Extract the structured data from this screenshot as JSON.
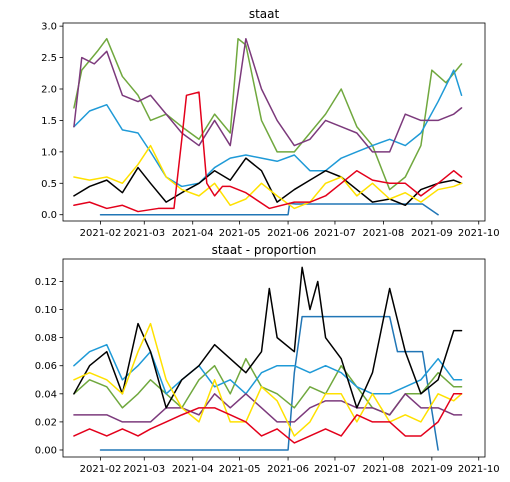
{
  "figure": {
    "charts": [
      {
        "title": "staat",
        "ylim": [
          -0.1,
          3.05
        ],
        "yticks": [
          0.0,
          0.5,
          1.0,
          1.5,
          2.0,
          2.5,
          3.0
        ],
        "ytick_labels": [
          "0.0",
          "0.5",
          "1.0",
          "1.5",
          "2.0",
          "2.5",
          "3.0"
        ]
      },
      {
        "title": "staat - proportion",
        "ylim": [
          -0.005,
          0.136
        ],
        "yticks": [
          0.0,
          0.02,
          0.04,
          0.06,
          0.08,
          0.1,
          0.12
        ],
        "ytick_labels": [
          "0.00",
          "0.02",
          "0.04",
          "0.06",
          "0.08",
          "0.10",
          "0.12"
        ]
      }
    ]
  },
  "chart_data": [
    {
      "type": "line",
      "title": "staat",
      "xlabel": "",
      "ylabel": "",
      "x_axis": "date",
      "xlim": [
        "2021-01-08",
        "2021-10-05"
      ],
      "xticks": [
        "2021-02-01",
        "2021-03-01",
        "2021-04-01",
        "2021-05-01",
        "2021-06-01",
        "2021-07-01",
        "2021-08-01",
        "2021-09-01",
        "2021-10-01"
      ],
      "xtick_labels": [
        "2021-02",
        "2021-03",
        "2021-04",
        "2021-05",
        "2021-06",
        "2021-07",
        "2021-08",
        "2021-09",
        "2021-10"
      ],
      "ylim": [
        -0.1,
        3.05
      ],
      "grid": false,
      "legend": "none",
      "series": [
        {
          "color": "#2176b6",
          "x": [
            "2021-02-01",
            "2021-05-01",
            "2021-05-15",
            "2021-06-01",
            "2021-06-02",
            "2021-06-06",
            "2021-08-26",
            "2021-09-05"
          ],
          "y": [
            0.0,
            0.0,
            0.0,
            0.0,
            0.18,
            0.17,
            0.17,
            0.0
          ]
        },
        {
          "color": "#70a83e",
          "x": [
            "2021-01-15",
            "2021-01-20",
            "2021-01-30",
            "2021-02-05",
            "2021-02-15",
            "2021-02-25",
            "2021-03-05",
            "2021-03-15",
            "2021-03-25",
            "2021-04-05",
            "2021-04-15",
            "2021-04-25",
            "2021-04-30",
            "2021-05-05",
            "2021-05-15",
            "2021-05-25",
            "2021-06-05",
            "2021-06-15",
            "2021-06-25",
            "2021-07-05",
            "2021-07-15",
            "2021-07-25",
            "2021-08-05",
            "2021-08-15",
            "2021-08-25",
            "2021-09-01",
            "2021-09-10",
            "2021-09-20"
          ],
          "y": [
            1.7,
            2.3,
            2.6,
            2.8,
            2.2,
            1.9,
            1.5,
            1.6,
            1.4,
            1.2,
            1.6,
            1.3,
            2.8,
            2.7,
            1.5,
            1.0,
            1.0,
            1.3,
            1.6,
            2.0,
            1.4,
            1.1,
            0.4,
            0.6,
            1.1,
            2.3,
            2.1,
            2.4
          ]
        },
        {
          "color": "#1f9ad7",
          "x": [
            "2021-01-15",
            "2021-01-25",
            "2021-02-05",
            "2021-02-15",
            "2021-02-25",
            "2021-03-05",
            "2021-03-15",
            "2021-03-25",
            "2021-04-05",
            "2021-04-15",
            "2021-04-25",
            "2021-05-05",
            "2021-05-15",
            "2021-05-25",
            "2021-06-05",
            "2021-06-15",
            "2021-06-25",
            "2021-07-05",
            "2021-07-15",
            "2021-07-25",
            "2021-08-05",
            "2021-08-15",
            "2021-08-25",
            "2021-09-05",
            "2021-09-15",
            "2021-09-20"
          ],
          "y": [
            1.4,
            1.65,
            1.75,
            1.35,
            1.3,
            1.0,
            0.6,
            0.45,
            0.5,
            0.75,
            0.9,
            0.95,
            0.9,
            0.85,
            0.95,
            0.7,
            0.7,
            0.9,
            1.0,
            1.1,
            1.2,
            1.1,
            1.3,
            1.8,
            2.3,
            1.9
          ]
        },
        {
          "color": "#7c3a7c",
          "x": [
            "2021-01-15",
            "2021-01-20",
            "2021-01-28",
            "2021-02-05",
            "2021-02-15",
            "2021-02-25",
            "2021-03-05",
            "2021-03-15",
            "2021-03-25",
            "2021-04-05",
            "2021-04-15",
            "2021-04-25",
            "2021-05-05",
            "2021-05-15",
            "2021-05-25",
            "2021-06-05",
            "2021-06-15",
            "2021-06-25",
            "2021-07-05",
            "2021-07-15",
            "2021-07-25",
            "2021-08-05",
            "2021-08-15",
            "2021-08-25",
            "2021-09-05",
            "2021-09-15",
            "2021-09-20"
          ],
          "y": [
            1.4,
            2.5,
            2.4,
            2.6,
            1.9,
            1.8,
            1.9,
            1.6,
            1.3,
            1.1,
            1.5,
            1.1,
            2.8,
            2.0,
            1.5,
            1.1,
            1.2,
            1.5,
            1.4,
            1.3,
            1.0,
            1.0,
            1.6,
            1.5,
            1.5,
            1.6,
            1.7
          ]
        },
        {
          "color": "#000000",
          "x": [
            "2021-01-15",
            "2021-01-25",
            "2021-02-05",
            "2021-02-15",
            "2021-02-25",
            "2021-03-05",
            "2021-03-15",
            "2021-03-25",
            "2021-04-05",
            "2021-04-15",
            "2021-04-25",
            "2021-05-05",
            "2021-05-15",
            "2021-05-25",
            "2021-06-05",
            "2021-06-15",
            "2021-06-25",
            "2021-07-05",
            "2021-07-15",
            "2021-07-25",
            "2021-08-05",
            "2021-08-15",
            "2021-08-25",
            "2021-09-05",
            "2021-09-15",
            "2021-09-20"
          ],
          "y": [
            0.3,
            0.45,
            0.55,
            0.35,
            0.75,
            0.5,
            0.2,
            0.35,
            0.5,
            0.7,
            0.55,
            0.9,
            0.7,
            0.2,
            0.4,
            0.55,
            0.7,
            0.6,
            0.4,
            0.2,
            0.25,
            0.15,
            0.4,
            0.5,
            0.55,
            0.5
          ]
        },
        {
          "color": "#ffe100",
          "x": [
            "2021-01-15",
            "2021-01-25",
            "2021-02-05",
            "2021-02-15",
            "2021-02-25",
            "2021-03-05",
            "2021-03-15",
            "2021-03-25",
            "2021-04-05",
            "2021-04-15",
            "2021-04-25",
            "2021-05-05",
            "2021-05-15",
            "2021-05-25",
            "2021-06-05",
            "2021-06-15",
            "2021-06-25",
            "2021-07-05",
            "2021-07-15",
            "2021-07-25",
            "2021-08-05",
            "2021-08-15",
            "2021-08-25",
            "2021-09-05",
            "2021-09-15",
            "2021-09-20"
          ],
          "y": [
            0.6,
            0.55,
            0.6,
            0.5,
            0.8,
            1.1,
            0.6,
            0.4,
            0.3,
            0.5,
            0.15,
            0.25,
            0.5,
            0.3,
            0.1,
            0.2,
            0.5,
            0.6,
            0.3,
            0.5,
            0.25,
            0.35,
            0.2,
            0.4,
            0.45,
            0.5
          ]
        },
        {
          "color": "#e3001b",
          "x": [
            "2021-01-15",
            "2021-01-25",
            "2021-02-05",
            "2021-02-15",
            "2021-02-25",
            "2021-03-10",
            "2021-03-20",
            "2021-03-25",
            "2021-03-28",
            "2021-04-05",
            "2021-04-10",
            "2021-04-15",
            "2021-04-20",
            "2021-04-25",
            "2021-05-05",
            "2021-05-20",
            "2021-06-05",
            "2021-06-15",
            "2021-06-25",
            "2021-07-05",
            "2021-07-15",
            "2021-07-25",
            "2021-08-05",
            "2021-08-15",
            "2021-08-25",
            "2021-09-05",
            "2021-09-15",
            "2021-09-20"
          ],
          "y": [
            0.15,
            0.2,
            0.1,
            0.15,
            0.05,
            0.1,
            0.1,
            1.2,
            1.9,
            1.95,
            0.5,
            0.3,
            0.45,
            0.45,
            0.35,
            0.1,
            0.2,
            0.2,
            0.3,
            0.5,
            0.7,
            0.55,
            0.5,
            0.5,
            0.3,
            0.5,
            0.7,
            0.6
          ]
        }
      ]
    },
    {
      "type": "line",
      "title": "staat - proportion",
      "xlabel": "",
      "ylabel": "",
      "x_axis": "date",
      "xlim": [
        "2021-01-08",
        "2021-10-05"
      ],
      "xticks": [
        "2021-02-01",
        "2021-03-01",
        "2021-04-01",
        "2021-05-01",
        "2021-06-01",
        "2021-07-01",
        "2021-08-01",
        "2021-09-01",
        "2021-10-01"
      ],
      "xtick_labels": [
        "2021-02",
        "2021-03",
        "2021-04",
        "2021-05",
        "2021-06",
        "2021-07",
        "2021-08",
        "2021-09",
        "2021-10"
      ],
      "ylim": [
        -0.005,
        0.136
      ],
      "grid": false,
      "legend": "none",
      "series": [
        {
          "color": "#2176b6",
          "x": [
            "2021-02-01",
            "2021-05-01",
            "2021-05-15",
            "2021-06-01",
            "2021-06-05",
            "2021-06-10",
            "2021-08-05",
            "2021-08-10",
            "2021-08-26",
            "2021-09-05"
          ],
          "y": [
            0.0,
            0.0,
            0.0,
            0.0,
            0.055,
            0.095,
            0.095,
            0.07,
            0.07,
            0.0
          ]
        },
        {
          "color": "#70a83e",
          "x": [
            "2021-01-15",
            "2021-01-25",
            "2021-02-05",
            "2021-02-15",
            "2021-02-25",
            "2021-03-05",
            "2021-03-15",
            "2021-03-25",
            "2021-04-05",
            "2021-04-15",
            "2021-04-25",
            "2021-05-05",
            "2021-05-15",
            "2021-05-25",
            "2021-06-05",
            "2021-06-15",
            "2021-06-25",
            "2021-07-05",
            "2021-07-15",
            "2021-07-25",
            "2021-08-05",
            "2021-08-15",
            "2021-08-25",
            "2021-09-05",
            "2021-09-15",
            "2021-09-20"
          ],
          "y": [
            0.04,
            0.05,
            0.045,
            0.03,
            0.04,
            0.05,
            0.04,
            0.03,
            0.05,
            0.06,
            0.04,
            0.065,
            0.045,
            0.04,
            0.03,
            0.045,
            0.04,
            0.06,
            0.045,
            0.03,
            0.025,
            0.04,
            0.04,
            0.055,
            0.045,
            0.045
          ]
        },
        {
          "color": "#1f9ad7",
          "x": [
            "2021-01-15",
            "2021-01-25",
            "2021-02-05",
            "2021-02-15",
            "2021-02-25",
            "2021-03-05",
            "2021-03-15",
            "2021-03-25",
            "2021-04-05",
            "2021-04-15",
            "2021-04-25",
            "2021-05-05",
            "2021-05-15",
            "2021-05-25",
            "2021-06-05",
            "2021-06-15",
            "2021-06-25",
            "2021-07-05",
            "2021-07-15",
            "2021-07-25",
            "2021-08-05",
            "2021-08-15",
            "2021-08-25",
            "2021-09-05",
            "2021-09-15",
            "2021-09-20"
          ],
          "y": [
            0.06,
            0.07,
            0.075,
            0.05,
            0.06,
            0.07,
            0.04,
            0.05,
            0.06,
            0.045,
            0.05,
            0.04,
            0.055,
            0.06,
            0.06,
            0.055,
            0.06,
            0.055,
            0.045,
            0.04,
            0.04,
            0.045,
            0.05,
            0.065,
            0.05,
            0.05
          ]
        },
        {
          "color": "#7c3a7c",
          "x": [
            "2021-01-15",
            "2021-01-25",
            "2021-02-05",
            "2021-02-15",
            "2021-02-25",
            "2021-03-05",
            "2021-03-15",
            "2021-03-25",
            "2021-04-05",
            "2021-04-15",
            "2021-04-25",
            "2021-05-05",
            "2021-05-15",
            "2021-05-25",
            "2021-06-05",
            "2021-06-15",
            "2021-06-25",
            "2021-07-05",
            "2021-07-15",
            "2021-07-25",
            "2021-08-05",
            "2021-08-15",
            "2021-08-25",
            "2021-09-05",
            "2021-09-15",
            "2021-09-20"
          ],
          "y": [
            0.025,
            0.025,
            0.025,
            0.02,
            0.02,
            0.02,
            0.03,
            0.03,
            0.025,
            0.04,
            0.03,
            0.04,
            0.03,
            0.02,
            0.02,
            0.03,
            0.035,
            0.035,
            0.03,
            0.03,
            0.025,
            0.04,
            0.03,
            0.03,
            0.025,
            0.025
          ]
        },
        {
          "color": "#000000",
          "x": [
            "2021-01-15",
            "2021-01-25",
            "2021-02-05",
            "2021-02-15",
            "2021-02-25",
            "2021-03-05",
            "2021-03-15",
            "2021-03-25",
            "2021-04-05",
            "2021-04-15",
            "2021-04-25",
            "2021-05-05",
            "2021-05-15",
            "2021-05-20",
            "2021-05-25",
            "2021-06-05",
            "2021-06-10",
            "2021-06-15",
            "2021-06-20",
            "2021-06-25",
            "2021-07-05",
            "2021-07-15",
            "2021-07-25",
            "2021-08-05",
            "2021-08-15",
            "2021-08-25",
            "2021-09-05",
            "2021-09-15",
            "2021-09-20"
          ],
          "y": [
            0.04,
            0.06,
            0.07,
            0.04,
            0.09,
            0.07,
            0.03,
            0.05,
            0.06,
            0.075,
            0.065,
            0.055,
            0.07,
            0.115,
            0.08,
            0.07,
            0.13,
            0.1,
            0.12,
            0.08,
            0.065,
            0.03,
            0.055,
            0.115,
            0.07,
            0.04,
            0.05,
            0.085,
            0.085
          ]
        },
        {
          "color": "#ffe100",
          "x": [
            "2021-01-15",
            "2021-01-25",
            "2021-02-05",
            "2021-02-15",
            "2021-02-25",
            "2021-03-05",
            "2021-03-15",
            "2021-03-25",
            "2021-04-05",
            "2021-04-15",
            "2021-04-25",
            "2021-05-05",
            "2021-05-15",
            "2021-05-25",
            "2021-06-05",
            "2021-06-15",
            "2021-06-25",
            "2021-07-05",
            "2021-07-15",
            "2021-07-25",
            "2021-08-05",
            "2021-08-15",
            "2021-08-25",
            "2021-09-05",
            "2021-09-15",
            "2021-09-20"
          ],
          "y": [
            0.05,
            0.055,
            0.05,
            0.04,
            0.07,
            0.09,
            0.05,
            0.03,
            0.02,
            0.05,
            0.02,
            0.02,
            0.045,
            0.035,
            0.01,
            0.02,
            0.04,
            0.04,
            0.02,
            0.04,
            0.02,
            0.025,
            0.02,
            0.04,
            0.035,
            0.04
          ]
        },
        {
          "color": "#e3001b",
          "x": [
            "2021-01-15",
            "2021-01-25",
            "2021-02-05",
            "2021-02-15",
            "2021-02-25",
            "2021-03-05",
            "2021-03-15",
            "2021-03-25",
            "2021-04-05",
            "2021-04-15",
            "2021-04-25",
            "2021-05-05",
            "2021-05-15",
            "2021-05-25",
            "2021-06-05",
            "2021-06-15",
            "2021-06-25",
            "2021-07-05",
            "2021-07-15",
            "2021-07-25",
            "2021-08-05",
            "2021-08-15",
            "2021-08-25",
            "2021-09-05",
            "2021-09-15",
            "2021-09-20"
          ],
          "y": [
            0.01,
            0.015,
            0.01,
            0.015,
            0.01,
            0.015,
            0.02,
            0.025,
            0.03,
            0.03,
            0.025,
            0.02,
            0.01,
            0.015,
            0.005,
            0.01,
            0.015,
            0.01,
            0.025,
            0.02,
            0.02,
            0.01,
            0.01,
            0.02,
            0.04,
            0.04
          ]
        }
      ]
    }
  ]
}
